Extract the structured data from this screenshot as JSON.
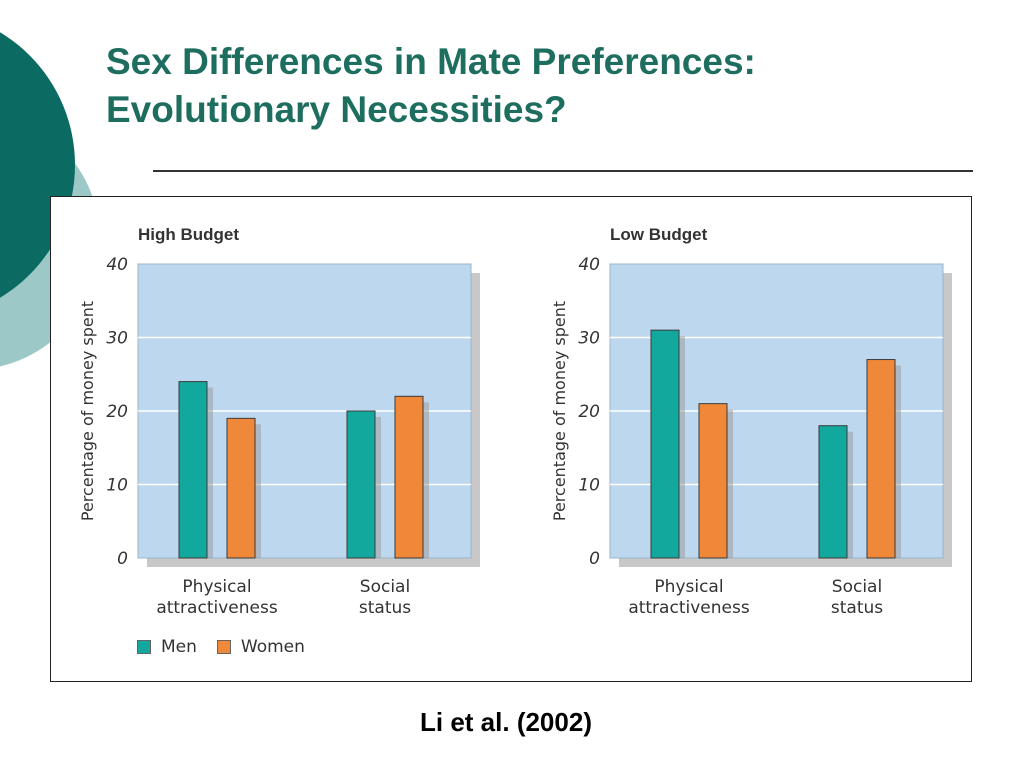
{
  "slide": {
    "title_line1": "Sex Differences in Mate Preferences:",
    "title_line2": "Evolutionary Necessities?",
    "citation": "Li et al. (2002)",
    "title_color": "#1e6e60",
    "decor_colors": [
      "#0b6b63",
      "#9cc9c7"
    ]
  },
  "legend": {
    "men": "Men",
    "women": "Women"
  },
  "chart_data": [
    {
      "type": "bar",
      "title": "High Budget",
      "ylabel": "Percentage of money spent",
      "categories": [
        "Physical\nattractiveness",
        "Social\nstatus"
      ],
      "series": [
        {
          "name": "Men",
          "color": "#13a89e",
          "values": [
            24,
            20
          ]
        },
        {
          "name": "Women",
          "color": "#f0883a",
          "values": [
            19,
            22
          ]
        }
      ],
      "ylim": [
        0,
        40
      ],
      "yticks": [
        0,
        10,
        20,
        30,
        40
      ],
      "grid": true,
      "plot_bg": "#bcd7ee",
      "legend_position": "bottom-left"
    },
    {
      "type": "bar",
      "title": "Low Budget",
      "ylabel": "Percentage of money spent",
      "categories": [
        "Physical\nattractiveness",
        "Social\nstatus"
      ],
      "series": [
        {
          "name": "Men",
          "color": "#13a89e",
          "values": [
            31,
            18
          ]
        },
        {
          "name": "Women",
          "color": "#f0883a",
          "values": [
            21,
            27
          ]
        }
      ],
      "ylim": [
        0,
        40
      ],
      "yticks": [
        0,
        10,
        20,
        30,
        40
      ],
      "grid": true,
      "plot_bg": "#bcd7ee",
      "legend_position": "bottom-left"
    }
  ]
}
